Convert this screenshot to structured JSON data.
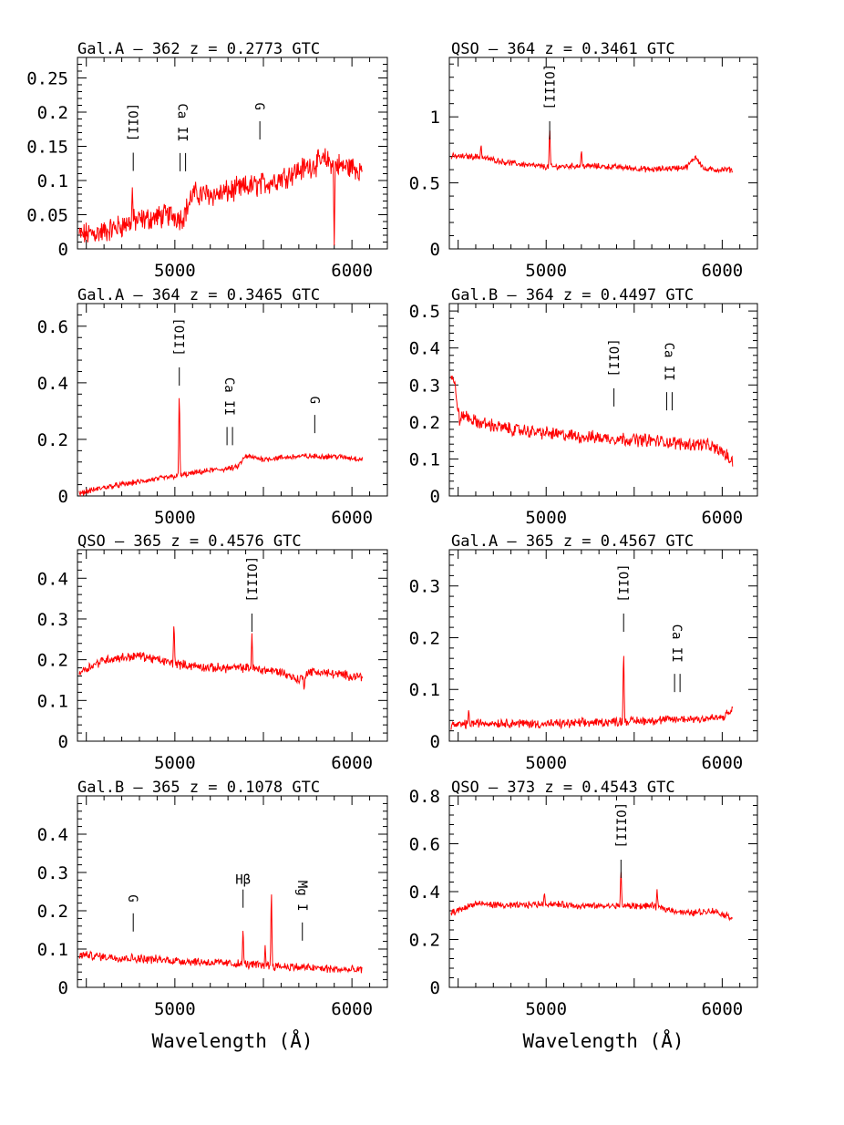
{
  "figure": {
    "xlabel": "Wavelength (Å)",
    "spectrum_color": "#ff0000"
  },
  "chart_data": [
    {
      "type": "line",
      "title": "Gal.A –  362   z = 0.2773 GTC",
      "xlim": [
        4450,
        6200
      ],
      "ylim": [
        0,
        0.28
      ],
      "yticks": [
        0,
        0.05,
        0.1,
        0.15,
        0.2,
        0.25
      ],
      "yticklabels": [
        "0",
        "0.05",
        "0.1",
        "0.15",
        "0.2",
        "0.25"
      ],
      "xticks": [
        5000,
        6000
      ],
      "xticklabels": [
        "5000",
        "6000"
      ],
      "xlabel": "",
      "noise": 0.014,
      "series": [
        {
          "x": [
            4460,
            4600,
            4760,
            4980,
            5040,
            5070,
            5100,
            5250,
            5400,
            5500,
            5560,
            5700,
            5800,
            5850,
            5900,
            5950,
            6000,
            6060
          ],
          "y": [
            0.02,
            0.025,
            0.04,
            0.05,
            0.045,
            0.06,
            0.08,
            0.08,
            0.09,
            0.095,
            0.1,
            0.115,
            0.125,
            0.13,
            0.125,
            0.12,
            0.12,
            0.115
          ]
        }
      ],
      "spikes": [
        [
          4760,
          0.09
        ],
        [
          5900,
          0.005
        ]
      ],
      "annotations": [
        {
          "text": "[OII]",
          "x": 4765
        },
        {
          "text": "Ca II",
          "x": 5045
        },
        {
          "text": "G",
          "x": 5480
        }
      ]
    },
    {
      "type": "line",
      "title": "QSO –  364   z = 0.3461 GTC",
      "xlim": [
        4450,
        6200
      ],
      "ylim": [
        0,
        1.45
      ],
      "yticks": [
        0,
        0.5,
        1
      ],
      "yticklabels": [
        "0",
        "0.5",
        "1"
      ],
      "xticks": [
        5000,
        6000
      ],
      "xticklabels": [
        "5000",
        "6000"
      ],
      "xlabel": "",
      "noise": 0.018,
      "series": [
        {
          "x": [
            4460,
            4600,
            4800,
            5000,
            5200,
            5400,
            5600,
            5800,
            5850,
            5900,
            6060
          ],
          "y": [
            0.7,
            0.7,
            0.65,
            0.62,
            0.63,
            0.62,
            0.6,
            0.62,
            0.7,
            0.6,
            0.6
          ]
        }
      ],
      "spikes": [
        [
          5020,
          0.95
        ],
        [
          4630,
          0.8
        ],
        [
          5200,
          0.76
        ]
      ],
      "annotations": [
        {
          "text": "[OIII]",
          "x": 5020
        }
      ]
    },
    {
      "type": "line",
      "title": "Gal.A –  364   z = 0.3465 GTC",
      "xlim": [
        4450,
        6200
      ],
      "ylim": [
        0,
        0.68
      ],
      "yticks": [
        0,
        0.2,
        0.4,
        0.6
      ],
      "yticklabels": [
        "0",
        "0.2",
        "0.4",
        "0.6"
      ],
      "xticks": [
        5000,
        6000
      ],
      "xticklabels": [
        "5000",
        "6000"
      ],
      "xlabel": "",
      "noise": 0.008,
      "series": [
        {
          "x": [
            4460,
            4600,
            4800,
            5000,
            5200,
            5350,
            5400,
            5500,
            5700,
            5900,
            6060
          ],
          "y": [
            0.01,
            0.03,
            0.05,
            0.07,
            0.09,
            0.1,
            0.14,
            0.13,
            0.14,
            0.14,
            0.13
          ]
        }
      ],
      "spikes": [
        [
          5025,
          0.4
        ]
      ],
      "annotations": [
        {
          "text": "[OII]",
          "x": 5025
        },
        {
          "text": "Ca II",
          "x": 5310
        },
        {
          "text": "G",
          "x": 5790
        }
      ]
    },
    {
      "type": "line",
      "title": "Gal.B –  364   z = 0.4497 GTC",
      "xlim": [
        4450,
        6200
      ],
      "ylim": [
        0,
        0.52
      ],
      "yticks": [
        0,
        0.1,
        0.2,
        0.3,
        0.4,
        0.5
      ],
      "yticklabels": [
        "0",
        "0.1",
        "0.2",
        "0.3",
        "0.4",
        "0.5"
      ],
      "xticks": [
        5000,
        6000
      ],
      "xticklabels": [
        "5000",
        "6000"
      ],
      "xlabel": "",
      "noise": 0.014,
      "series": [
        {
          "x": [
            4460,
            4480,
            4510,
            4530,
            4600,
            4800,
            5000,
            5200,
            5400,
            5600,
            5800,
            5900,
            6000,
            6060
          ],
          "y": [
            0.33,
            0.3,
            0.2,
            0.22,
            0.2,
            0.18,
            0.17,
            0.16,
            0.155,
            0.15,
            0.14,
            0.14,
            0.12,
            0.09
          ]
        }
      ],
      "spikes": [],
      "annotations": [
        {
          "text": "[OII]",
          "x": 5385
        },
        {
          "text": "Ca II",
          "x": 5700
        }
      ]
    },
    {
      "type": "line",
      "title": "QSO –  365   z = 0.4576 GTC",
      "xlim": [
        4450,
        6200
      ],
      "ylim": [
        0,
        0.47
      ],
      "yticks": [
        0,
        0.1,
        0.2,
        0.3,
        0.4
      ],
      "yticklabels": [
        "0",
        "0.1",
        "0.2",
        "0.3",
        "0.4"
      ],
      "xticks": [
        5000,
        6000
      ],
      "xticklabels": [
        "5000",
        "6000"
      ],
      "xlabel": "",
      "noise": 0.009,
      "series": [
        {
          "x": [
            4460,
            4600,
            4800,
            5000,
            5200,
            5400,
            5600,
            5700,
            5750,
            5800,
            6000,
            6060
          ],
          "y": [
            0.17,
            0.2,
            0.21,
            0.19,
            0.18,
            0.18,
            0.17,
            0.15,
            0.17,
            0.17,
            0.16,
            0.16
          ]
        }
      ],
      "spikes": [
        [
          4995,
          0.3
        ],
        [
          5435,
          0.265
        ],
        [
          5730,
          0.12
        ]
      ],
      "annotations": [
        {
          "text": "[OIII]",
          "x": 5435
        }
      ]
    },
    {
      "type": "line",
      "title": "Gal.A –  365   z = 0.4567 GTC",
      "xlim": [
        4450,
        6200
      ],
      "ylim": [
        0,
        0.37
      ],
      "yticks": [
        0,
        0.1,
        0.2,
        0.3
      ],
      "yticklabels": [
        "0",
        "0.1",
        "0.2",
        "0.3"
      ],
      "xticks": [
        5000,
        6000
      ],
      "xticklabels": [
        "5000",
        "6000"
      ],
      "xlabel": "",
      "noise": 0.007,
      "series": [
        {
          "x": [
            4460,
            4600,
            4800,
            5000,
            5200,
            5400,
            5600,
            5800,
            6000,
            6060
          ],
          "y": [
            0.03,
            0.035,
            0.035,
            0.033,
            0.035,
            0.038,
            0.04,
            0.043,
            0.045,
            0.06
          ]
        }
      ],
      "spikes": [
        [
          5440,
          0.19
        ],
        [
          4560,
          0.065
        ]
      ],
      "annotations": [
        {
          "text": "[OII]",
          "x": 5440
        },
        {
          "text": "Ca II",
          "x": 5745
        }
      ]
    },
    {
      "type": "line",
      "title": "Gal.B –  365   z = 0.1078 GTC",
      "xlim": [
        4450,
        6200
      ],
      "ylim": [
        0,
        0.5
      ],
      "yticks": [
        0,
        0.1,
        0.2,
        0.3,
        0.4
      ],
      "yticklabels": [
        "0",
        "0.1",
        "0.2",
        "0.3",
        "0.4"
      ],
      "xticks": [
        5000,
        6000
      ],
      "xticklabels": [
        "5000",
        "6000"
      ],
      "xlabel": "Wavelength (Å)",
      "noise": 0.009,
      "series": [
        {
          "x": [
            4460,
            4600,
            4800,
            5000,
            5200,
            5400,
            5600,
            5800,
            6000,
            6060
          ],
          "y": [
            0.085,
            0.08,
            0.075,
            0.07,
            0.065,
            0.06,
            0.055,
            0.05,
            0.045,
            0.045
          ]
        }
      ],
      "spikes": [
        [
          5385,
          0.165
        ],
        [
          5545,
          0.28
        ],
        [
          5510,
          0.11
        ]
      ],
      "annotations": [
        {
          "text": "G",
          "x": 4765
        },
        {
          "text": "Hβ",
          "x": 5385
        },
        {
          "text": "Mg I",
          "x": 5720
        }
      ]
    },
    {
      "type": "line",
      "title": "QSO –  373   z = 0.4543 GTC",
      "xlim": [
        4450,
        6200
      ],
      "ylim": [
        0,
        0.8
      ],
      "yticks": [
        0,
        0.2,
        0.4,
        0.6,
        0.8
      ],
      "yticklabels": [
        "0",
        "0.2",
        "0.4",
        "0.6",
        "0.8"
      ],
      "xticks": [
        5000,
        6000
      ],
      "xticklabels": [
        "5000",
        "6000"
      ],
      "xlabel": "Wavelength (Å)",
      "noise": 0.011,
      "series": [
        {
          "x": [
            4460,
            4600,
            4800,
            5000,
            5200,
            5400,
            5600,
            5800,
            5950,
            6060
          ],
          "y": [
            0.31,
            0.35,
            0.34,
            0.35,
            0.34,
            0.34,
            0.34,
            0.31,
            0.32,
            0.29
          ]
        }
      ],
      "spikes": [
        [
          5425,
          0.51
        ],
        [
          5630,
          0.41
        ],
        [
          4990,
          0.4
        ]
      ],
      "annotations": [
        {
          "text": "[OIII]",
          "x": 5425
        }
      ]
    }
  ]
}
